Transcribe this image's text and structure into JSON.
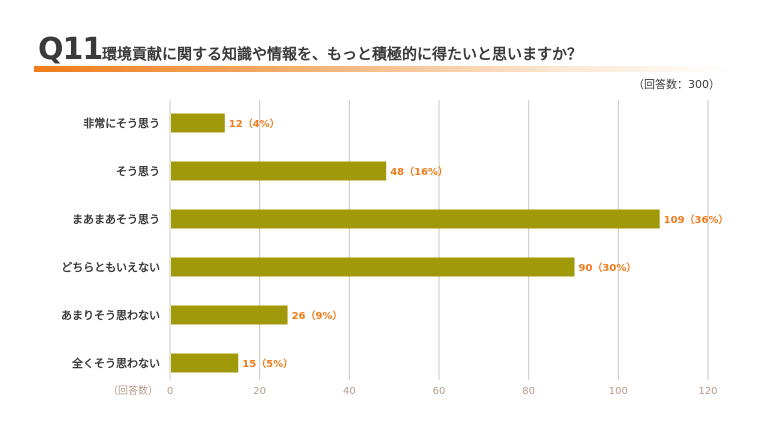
{
  "header": {
    "question_number": "Q11",
    "question_text": "環境貢献に関する知識や情報を、もっと積極的に得たいと思いますか？",
    "respondents": "（回答数：300）"
  },
  "colors": {
    "bar": "#a09a0b",
    "label": "#ef7c1b",
    "accent": "#ef7c1b"
  },
  "chart_data": {
    "type": "bar",
    "orientation": "horizontal",
    "categories": [
      "非常にそう思う",
      "そう思う",
      "まあまあそう思う",
      "どちらともいえない",
      "あまりそう思わない",
      "全くそう思わない"
    ],
    "values": [
      12,
      48,
      109,
      90,
      26,
      15
    ],
    "data_labels": [
      "12（4%）",
      "48（16%）",
      "109（36%）",
      "90（30%）",
      "26（9%）",
      "15（5%）"
    ],
    "xlabel": "（回答数）",
    "ylabel": "",
    "xlim": [
      0,
      120
    ],
    "xticks": [
      0,
      20,
      40,
      60,
      80,
      100,
      120
    ],
    "grid": "vertical"
  }
}
